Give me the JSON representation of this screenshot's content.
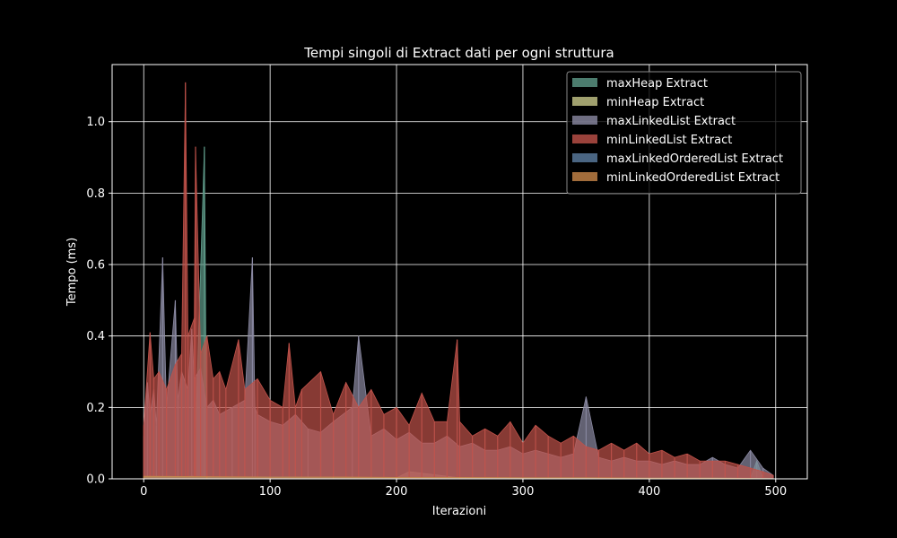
{
  "chart_data": {
    "type": "area",
    "title": "Tempi singoli di Extract dati per ogni struttura",
    "xlabel": "Iterazioni",
    "ylabel": "Tempo (ms)",
    "xlim": [
      -25,
      525
    ],
    "ylim": [
      0,
      1.16
    ],
    "xticks": [
      0,
      100,
      200,
      300,
      400,
      500
    ],
    "yticks": [
      0.0,
      0.2,
      0.4,
      0.6,
      0.8,
      1.0
    ],
    "xtick_labels": [
      "0",
      "100",
      "200",
      "300",
      "400",
      "500"
    ],
    "ytick_labels": [
      "0.0",
      "0.2",
      "0.4",
      "0.6",
      "0.8",
      "1.0"
    ],
    "grid": true,
    "legend_position": "top-right",
    "background": "#000000",
    "series": [
      {
        "name": "maxHeap Extract",
        "color": "#5f9b8a",
        "x": [
          0,
          10,
          20,
          30,
          40,
          48,
          50,
          60,
          80,
          100,
          150,
          200,
          250,
          300,
          350,
          400,
          450,
          480,
          485,
          490,
          498
        ],
        "values": [
          0.005,
          0.006,
          0.007,
          0.006,
          0.008,
          0.93,
          0.006,
          0.005,
          0.005,
          0.004,
          0.004,
          0.003,
          0.003,
          0.003,
          0.002,
          0.002,
          0.002,
          0.002,
          0.05,
          0.002,
          0.001
        ]
      },
      {
        "name": "minHeap Extract",
        "color": "#c8c88a",
        "x": [
          0,
          50,
          100,
          150,
          200,
          210,
          250,
          300,
          350,
          400,
          450,
          498
        ],
        "values": [
          0.004,
          0.005,
          0.004,
          0.004,
          0.003,
          0.02,
          0.003,
          0.003,
          0.002,
          0.002,
          0.002,
          0.001
        ]
      },
      {
        "name": "maxLinkedList Extract",
        "color": "#8b8aa3",
        "x": [
          0,
          3,
          5,
          8,
          10,
          15,
          18,
          25,
          27,
          30,
          35,
          38,
          40,
          45,
          50,
          55,
          60,
          70,
          80,
          86,
          88,
          90,
          100,
          110,
          120,
          130,
          140,
          150,
          165,
          170,
          180,
          190,
          200,
          210,
          220,
          230,
          240,
          250,
          260,
          270,
          280,
          290,
          300,
          310,
          320,
          330,
          340,
          350,
          360,
          370,
          380,
          390,
          400,
          410,
          420,
          430,
          440,
          450,
          460,
          470,
          480,
          490,
          498
        ],
        "values": [
          0.12,
          0.27,
          0.18,
          0.25,
          0.15,
          0.62,
          0.2,
          0.5,
          0.22,
          0.3,
          0.25,
          0.42,
          0.28,
          0.31,
          0.2,
          0.22,
          0.18,
          0.2,
          0.22,
          0.62,
          0.2,
          0.18,
          0.16,
          0.15,
          0.18,
          0.14,
          0.13,
          0.16,
          0.2,
          0.4,
          0.12,
          0.14,
          0.11,
          0.13,
          0.1,
          0.1,
          0.12,
          0.09,
          0.1,
          0.08,
          0.08,
          0.09,
          0.07,
          0.08,
          0.07,
          0.06,
          0.07,
          0.23,
          0.06,
          0.05,
          0.06,
          0.05,
          0.05,
          0.04,
          0.05,
          0.04,
          0.04,
          0.06,
          0.04,
          0.03,
          0.08,
          0.03,
          0.01
        ]
      },
      {
        "name": "minLinkedList Extract",
        "color": "#c0524a",
        "x": [
          0,
          5,
          8,
          12,
          18,
          25,
          30,
          33,
          35,
          40,
          41,
          45,
          50,
          55,
          60,
          65,
          75,
          80,
          90,
          100,
          110,
          115,
          120,
          125,
          140,
          150,
          160,
          170,
          180,
          190,
          200,
          210,
          220,
          230,
          240,
          248,
          250,
          260,
          270,
          280,
          290,
          300,
          310,
          320,
          330,
          340,
          350,
          360,
          370,
          380,
          390,
          400,
          410,
          420,
          430,
          440,
          450,
          460,
          470,
          480,
          490,
          498
        ],
        "values": [
          0.15,
          0.41,
          0.28,
          0.3,
          0.25,
          0.32,
          0.35,
          1.11,
          0.4,
          0.45,
          0.93,
          0.35,
          0.4,
          0.28,
          0.3,
          0.25,
          0.39,
          0.25,
          0.28,
          0.22,
          0.2,
          0.38,
          0.2,
          0.25,
          0.3,
          0.18,
          0.27,
          0.2,
          0.25,
          0.18,
          0.2,
          0.15,
          0.24,
          0.16,
          0.16,
          0.39,
          0.16,
          0.12,
          0.14,
          0.12,
          0.16,
          0.1,
          0.15,
          0.12,
          0.1,
          0.12,
          0.09,
          0.08,
          0.1,
          0.08,
          0.1,
          0.07,
          0.08,
          0.06,
          0.07,
          0.05,
          0.05,
          0.05,
          0.04,
          0.03,
          0.02,
          0.01
        ]
      },
      {
        "name": "maxLinkedOrderedList Extract",
        "color": "#5d7ea2",
        "x": [
          0,
          50,
          100,
          150,
          200,
          250,
          300,
          350,
          400,
          450,
          498
        ],
        "values": [
          0.006,
          0.005,
          0.005,
          0.004,
          0.004,
          0.003,
          0.003,
          0.003,
          0.002,
          0.002,
          0.001
        ]
      },
      {
        "name": "minLinkedOrderedList Extract",
        "color": "#c9874a",
        "x": [
          0,
          50,
          100,
          150,
          200,
          250,
          300,
          350,
          400,
          450,
          498
        ],
        "values": [
          0.007,
          0.006,
          0.005,
          0.005,
          0.004,
          0.004,
          0.003,
          0.003,
          0.002,
          0.002,
          0.001
        ]
      }
    ]
  }
}
